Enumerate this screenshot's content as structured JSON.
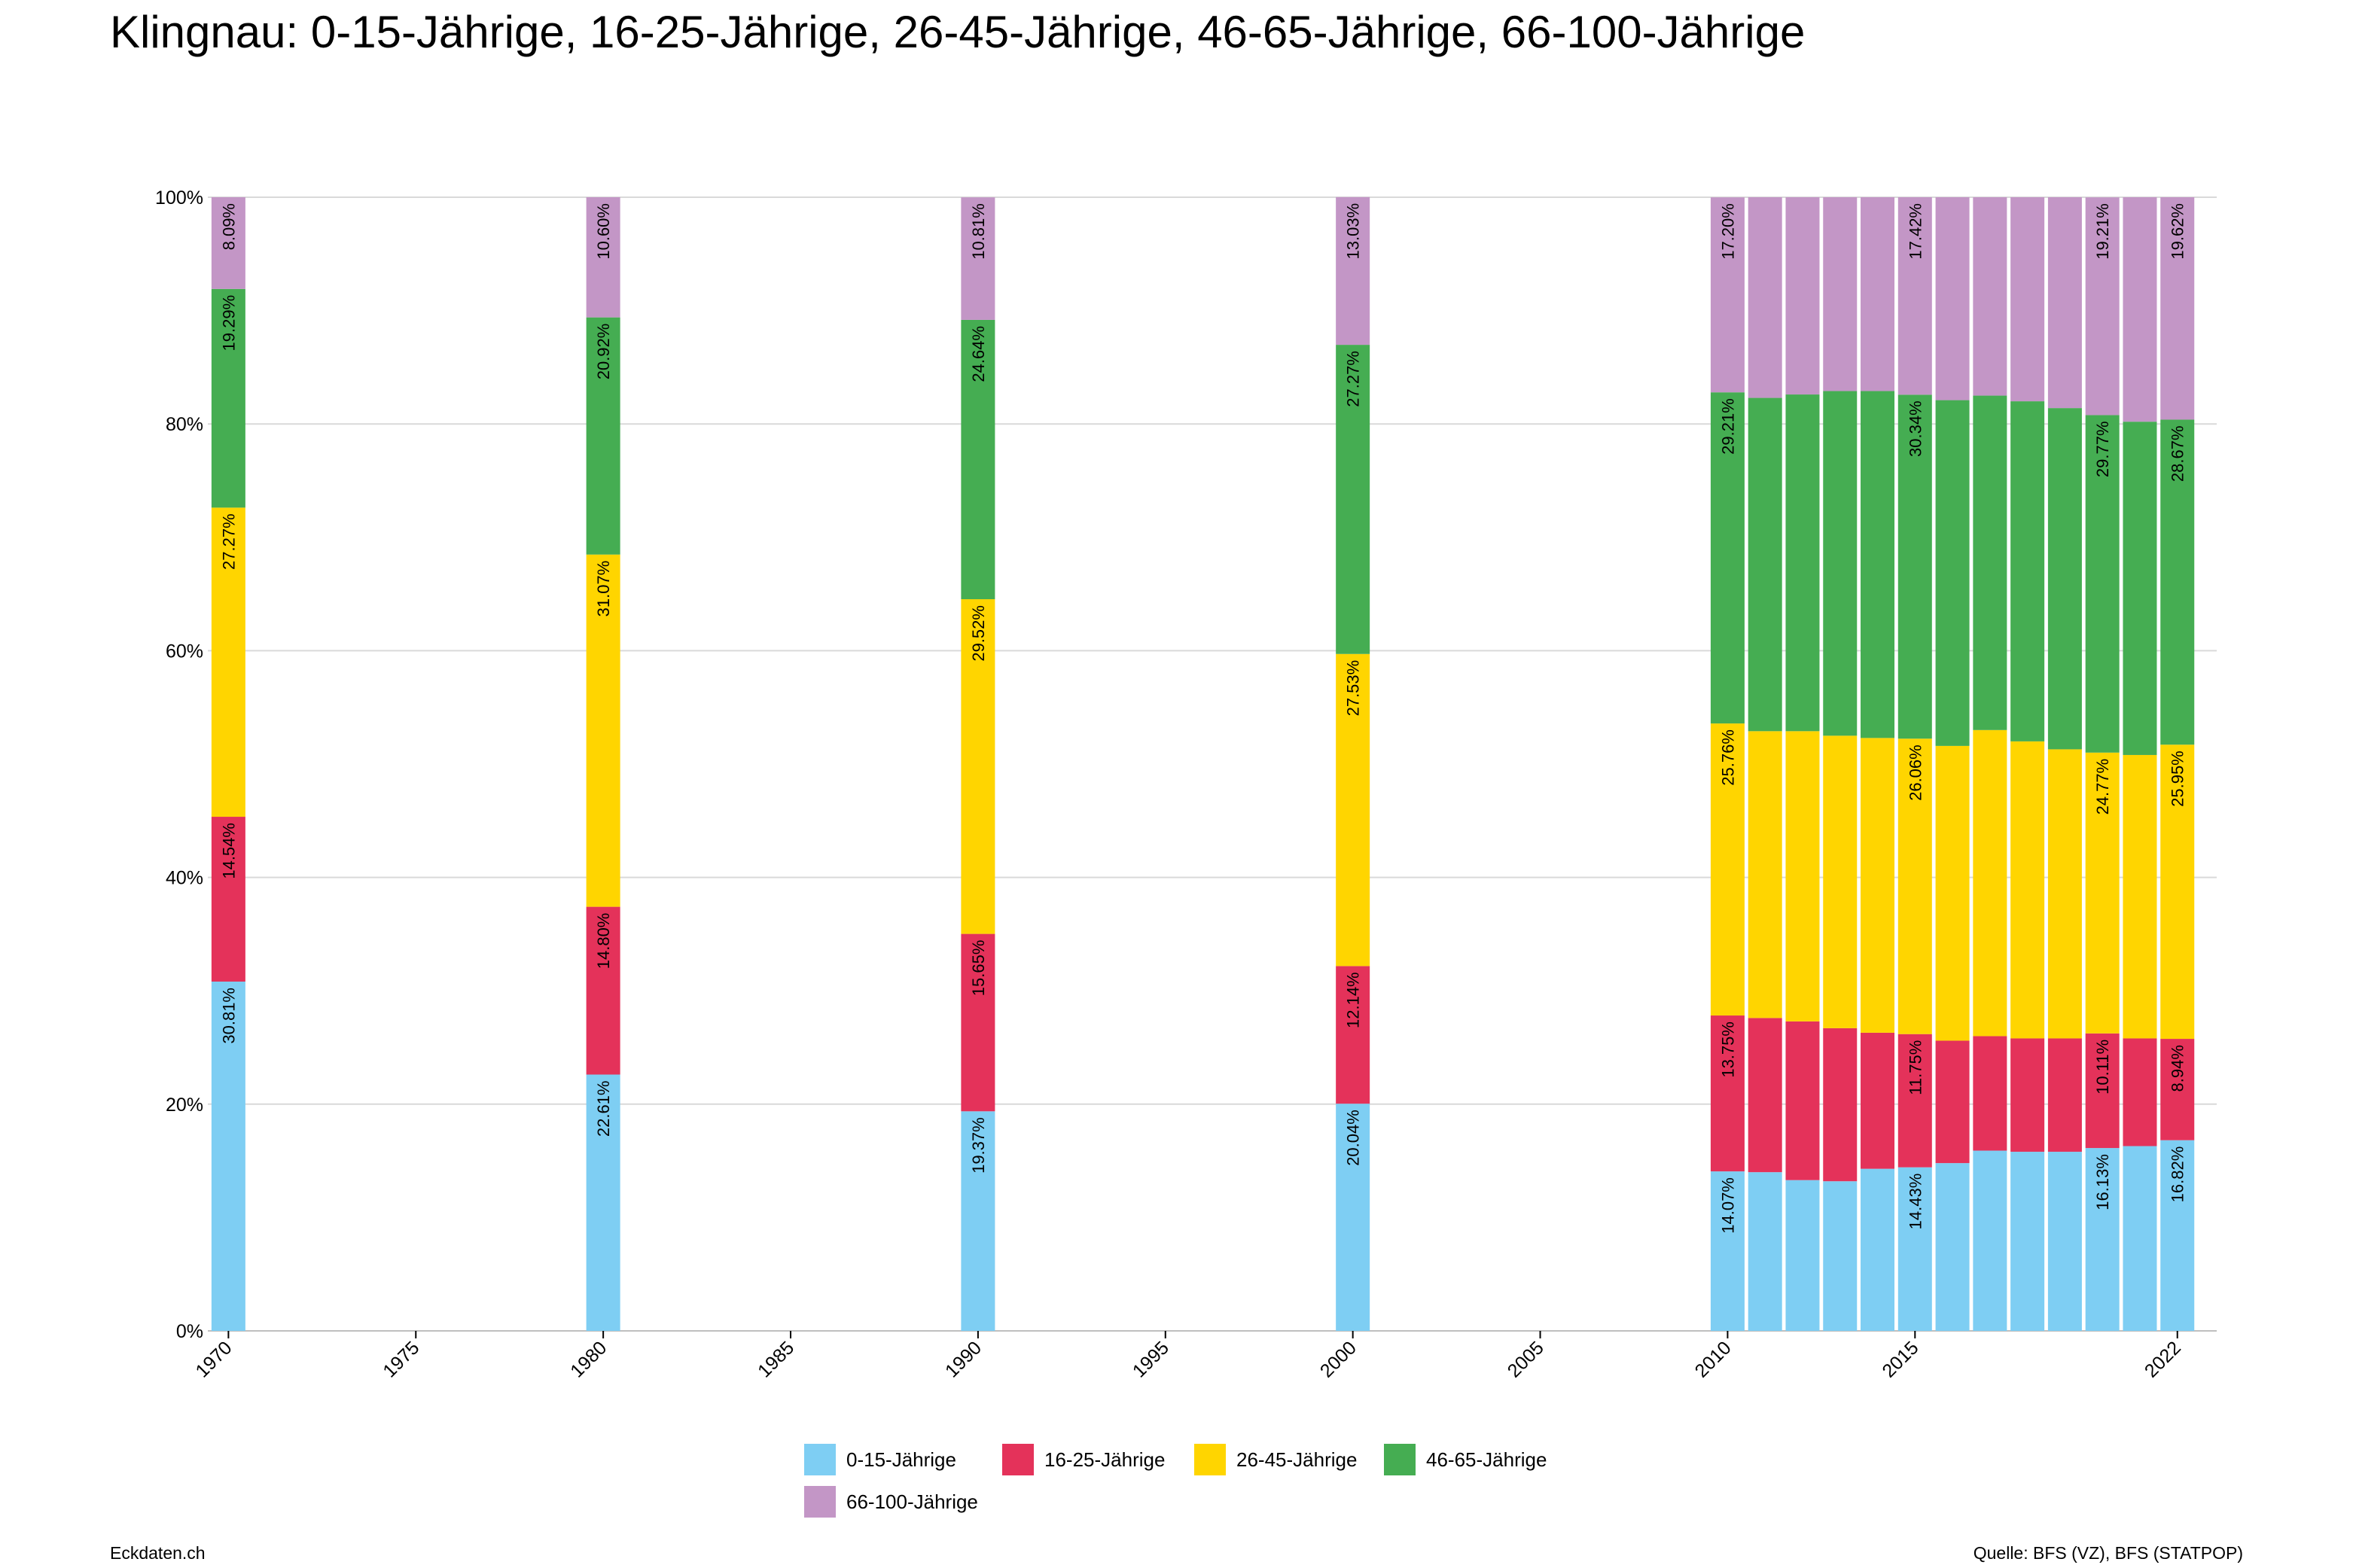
{
  "title": "Klingnau: 0-15-Jährige, 16-25-Jährige, 26-45-Jährige, 46-65-Jährige, 66-100-Jährige",
  "footer": {
    "left": "Eckdaten.ch",
    "right": "Quelle: BFS (VZ), BFS (STATPOP)"
  },
  "colors": {
    "s0": "#7ecef3",
    "s1": "#e4325a",
    "s2": "#ffd500",
    "s3": "#45ad52",
    "s4": "#c396c6",
    "grid": "#d9d9d9",
    "axis": "#bfbfbf"
  },
  "chart_data": {
    "type": "bar",
    "stacked": true,
    "normalized": true,
    "title": "Klingnau: 0-15-Jährige, 16-25-Jährige, 26-45-Jährige, 46-65-Jährige, 66-100-Jährige",
    "xlabel": "",
    "ylabel": "",
    "ylim": [
      0,
      100
    ],
    "y_ticks": [
      "0%",
      "20%",
      "40%",
      "60%",
      "80%",
      "100%"
    ],
    "x_ticks": [
      "1970",
      "1975",
      "1980",
      "1985",
      "1990",
      "1995",
      "2000",
      "2005",
      "2010",
      "2015",
      "2022"
    ],
    "grid": true,
    "legend_position": "bottom",
    "x": [
      1970,
      1980,
      1990,
      2000,
      2010,
      2011,
      2012,
      2013,
      2014,
      2015,
      2016,
      2017,
      2018,
      2019,
      2020,
      2021,
      2022
    ],
    "series": [
      {
        "name": "0-15-Jährige",
        "values": [
          30.81,
          22.61,
          19.37,
          20.04,
          14.07,
          14.0,
          13.3,
          13.2,
          14.3,
          14.43,
          14.8,
          15.9,
          15.8,
          15.8,
          16.13,
          16.3,
          16.82
        ],
        "labels": [
          "30.81%",
          "22.61%",
          "19.37%",
          "20.04%",
          "14.07%",
          "",
          "",
          "",
          "",
          "14.43%",
          "",
          "",
          "",
          "",
          "16.13%",
          "",
          "16.82%"
        ]
      },
      {
        "name": "16-25-Jährige",
        "values": [
          14.54,
          14.8,
          15.65,
          12.14,
          13.75,
          13.6,
          14.0,
          13.5,
          12.0,
          11.75,
          10.8,
          10.1,
          10.0,
          10.0,
          10.11,
          9.5,
          8.94
        ],
        "labels": [
          "14.54%",
          "14.80%",
          "15.65%",
          "12.14%",
          "13.75%",
          "",
          "",
          "",
          "",
          "11.75%",
          "",
          "",
          "",
          "",
          "10.11%",
          "",
          "8.94%"
        ]
      },
      {
        "name": "26-45-Jährige",
        "values": [
          27.27,
          31.07,
          29.52,
          27.53,
          25.76,
          25.3,
          25.6,
          25.8,
          26.0,
          26.06,
          26.0,
          27.0,
          26.2,
          25.5,
          24.77,
          25.0,
          25.95
        ],
        "labels": [
          "27.27%",
          "31.07%",
          "29.52%",
          "27.53%",
          "25.76%",
          "",
          "",
          "",
          "",
          "26.06%",
          "",
          "",
          "",
          "",
          "24.77%",
          "",
          "25.95%"
        ]
      },
      {
        "name": "46-65-Jährige",
        "values": [
          19.29,
          20.92,
          24.64,
          27.27,
          29.21,
          29.4,
          29.7,
          30.4,
          30.6,
          30.34,
          30.5,
          29.5,
          30.0,
          30.1,
          29.77,
          29.4,
          28.67
        ],
        "labels": [
          "19.29%",
          "20.92%",
          "24.64%",
          "27.27%",
          "29.21%",
          "",
          "",
          "",
          "",
          "30.34%",
          "",
          "",
          "",
          "",
          "29.77%",
          "",
          "28.67%"
        ]
      },
      {
        "name": "66-100-Jährige",
        "values": [
          8.09,
          10.6,
          10.81,
          13.03,
          17.2,
          17.7,
          17.4,
          17.1,
          17.1,
          17.42,
          17.9,
          17.5,
          18.0,
          18.6,
          19.21,
          19.8,
          19.62
        ],
        "labels": [
          "8.09%",
          "10.60%",
          "10.81%",
          "13.03%",
          "17.20%",
          "",
          "",
          "",
          "",
          "17.42%",
          "",
          "",
          "",
          "",
          "19.21%",
          "",
          "19.62%"
        ]
      }
    ]
  }
}
